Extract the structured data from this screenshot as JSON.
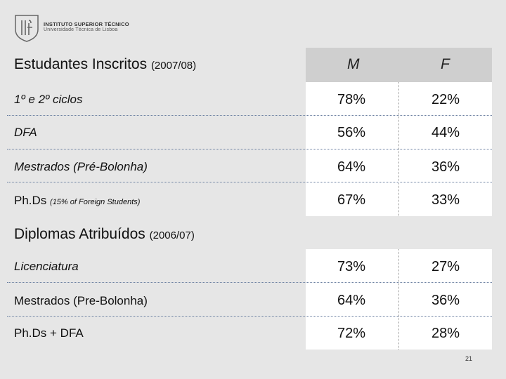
{
  "header": {
    "institution": "INSTITUTO SUPERIOR TÉCNICO",
    "university": "Universidade Técnica de Lisboa"
  },
  "columns": {
    "m": "M",
    "f": "F"
  },
  "section1": {
    "title": "Estudantes Inscritos",
    "year": "(2007/08)",
    "rows": [
      {
        "label": "1º  e  2º ciclos",
        "m": "78%",
        "f": "22%"
      },
      {
        "label": "DFA",
        "m": "56%",
        "f": "44%"
      },
      {
        "label": "Mestrados (Pré-Bolonha)",
        "m": "64%",
        "f": "36%"
      },
      {
        "label": "Ph.Ds",
        "note": "(15% of Foreign Students)",
        "m": "67%",
        "f": "33%"
      }
    ]
  },
  "section2": {
    "title": "Diplomas Atribuídos",
    "year": "(2006/07)",
    "rows": [
      {
        "label": "Licenciatura",
        "m": "73%",
        "f": "27%"
      },
      {
        "label": "Mestrados (Pre-Bolonha)",
        "m": "64%",
        "f": "36%"
      },
      {
        "label": "Ph.Ds + DFA",
        "m": "72%",
        "f": "28%"
      }
    ]
  },
  "page_number": "21"
}
